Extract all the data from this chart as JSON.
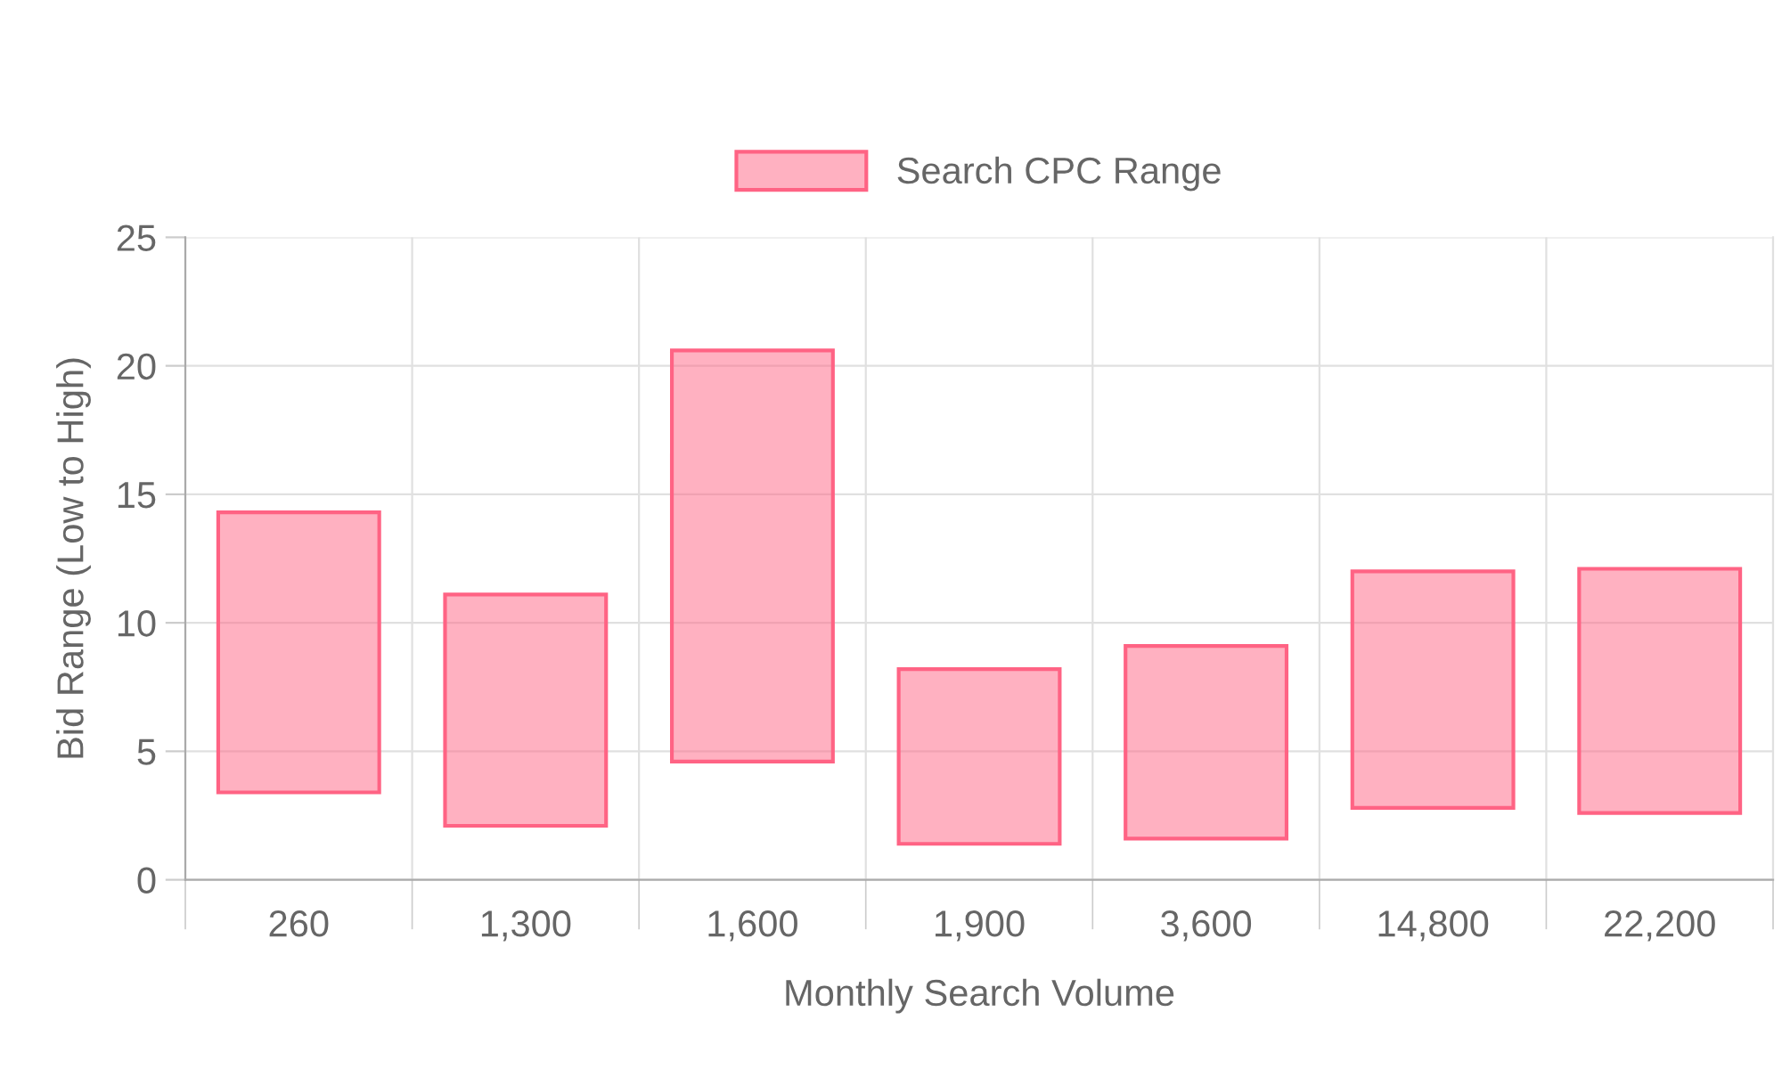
{
  "chart_data": {
    "type": "bar",
    "xlabel": "Monthly Search Volume",
    "ylabel": "Bid Range (Low to High)",
    "categories": [
      "260",
      "1,300",
      "1,600",
      "1,900",
      "3,600",
      "14,800",
      "22,200"
    ],
    "series": [
      {
        "name": "Search CPC Range",
        "color": "#ff6384",
        "base": [
          3.4,
          2.1,
          4.6,
          1.4,
          1.6,
          2.8,
          2.6
        ],
        "values": [
          10.9,
          9.0,
          16.0,
          6.8,
          7.5,
          9.2,
          9.5
        ]
      }
    ],
    "ylim": [
      0,
      25
    ],
    "yticks": [
      0,
      5,
      10,
      15,
      20,
      25
    ],
    "grid": true,
    "legend": "top"
  }
}
